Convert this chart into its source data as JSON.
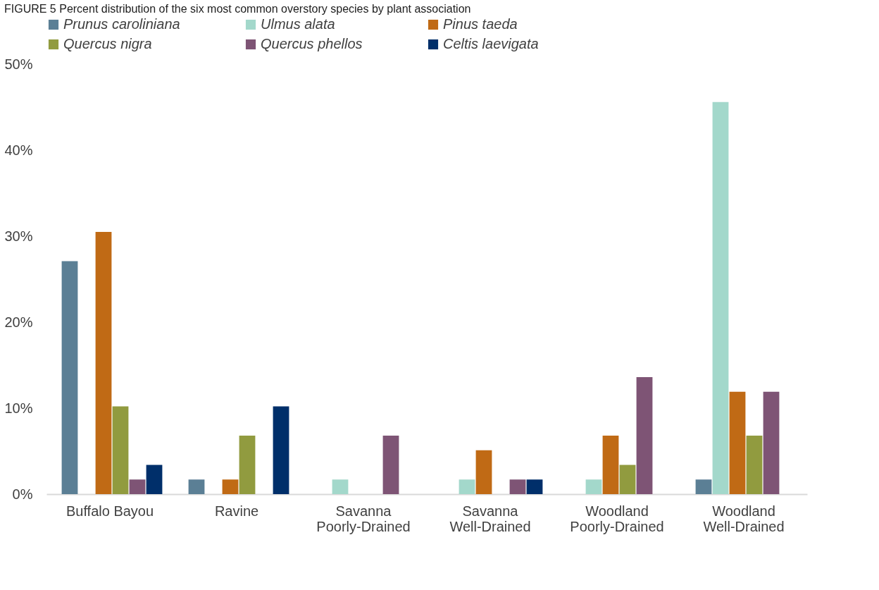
{
  "chart_data": {
    "type": "bar",
    "title": "FIGURE 5 Percent distribution of the six most common overstory species by plant association",
    "categories": [
      "Buffalo Bayou",
      "Ravine",
      "Savanna Poorly-Drained",
      "Savanna Well-Drained",
      "Woodland Poorly-Drained",
      "Woodland Well-Drained"
    ],
    "series": [
      {
        "name": "Prunus caroliniana",
        "color": "#5b7f95",
        "values": [
          27.1,
          1.7,
          null,
          null,
          null,
          1.7
        ]
      },
      {
        "name": "Ulmus alata",
        "color": "#a3d8cb",
        "values": [
          null,
          null,
          1.7,
          1.7,
          1.7,
          45.6
        ]
      },
      {
        "name": "Pinus taeda",
        "color": "#c06a15",
        "values": [
          30.5,
          1.7,
          null,
          5.1,
          6.8,
          11.9
        ]
      },
      {
        "name": "Quercus nigra",
        "color": "#919b3f",
        "values": [
          10.2,
          6.8,
          null,
          null,
          3.4,
          6.8
        ]
      },
      {
        "name": "Quercus phellos",
        "color": "#7e5475",
        "values": [
          1.7,
          null,
          6.8,
          1.7,
          13.6,
          11.9
        ]
      },
      {
        "name": "Celtis laevigata",
        "color": "#002f6a",
        "values": [
          3.4,
          10.2,
          null,
          1.7,
          null,
          null
        ]
      }
    ],
    "ylim": [
      0,
      50
    ],
    "yticks": [
      {
        "value": 0,
        "label": "0%"
      },
      {
        "value": 10,
        "label": "10%"
      },
      {
        "value": 20,
        "label": "20%"
      },
      {
        "value": 30,
        "label": "30%"
      },
      {
        "value": 40,
        "label": "40%"
      },
      {
        "value": 50,
        "label": "50%"
      }
    ],
    "grid": false,
    "legend": "top"
  }
}
